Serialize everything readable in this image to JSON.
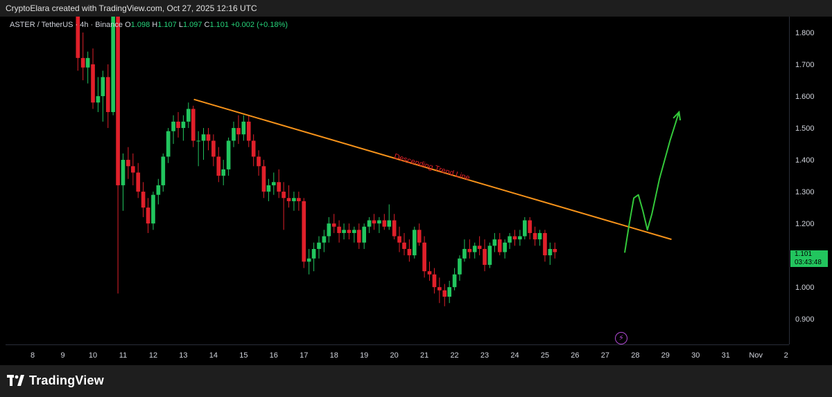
{
  "header": {
    "credit": "CryptoElara created with TradingView.com, Oct 27, 2025 12:16 UTC"
  },
  "legend": {
    "symbol": "ASTER / TetherUS · 4h · Binance",
    "open_label": "O",
    "open": "1.098",
    "high_label": "H",
    "high": "1.107",
    "low_label": "L",
    "low": "1.097",
    "close_label": "C",
    "close": "1.101",
    "change": "+0.002 (+0.18%)"
  },
  "last_price": {
    "price": "1.101",
    "countdown": "03:43:48"
  },
  "footer": {
    "brand": "TradingView"
  },
  "colors": {
    "up": "#22c55e",
    "down": "#e0202a",
    "trend": "#f7931a",
    "annotation": "#e0202a",
    "projection": "#34c93b"
  },
  "icons": {
    "alert": "lightning-bolt-icon",
    "logo": "tradingview-logo-icon"
  },
  "chart_data": {
    "type": "candlestick",
    "title": "",
    "price_ticks": [
      "1.800",
      "1.700",
      "1.600",
      "1.500",
      "1.400",
      "1.300",
      "1.200",
      "1.100",
      "1.000",
      "0.900"
    ],
    "ylim": [
      0.82,
      1.85
    ],
    "time_ticks": [
      {
        "label": "8",
        "d": 8
      },
      {
        "label": "9",
        "d": 9
      },
      {
        "label": "10",
        "d": 10
      },
      {
        "label": "11",
        "d": 11
      },
      {
        "label": "12",
        "d": 12
      },
      {
        "label": "13",
        "d": 13
      },
      {
        "label": "14",
        "d": 14
      },
      {
        "label": "15",
        "d": 15
      },
      {
        "label": "16",
        "d": 16
      },
      {
        "label": "17",
        "d": 17
      },
      {
        "label": "18",
        "d": 18
      },
      {
        "label": "19",
        "d": 19
      },
      {
        "label": "20",
        "d": 20
      },
      {
        "label": "21",
        "d": 21
      },
      {
        "label": "22",
        "d": 22
      },
      {
        "label": "23",
        "d": 23
      },
      {
        "label": "24",
        "d": 24
      },
      {
        "label": "25",
        "d": 25
      },
      {
        "label": "26",
        "d": 26
      },
      {
        "label": "27",
        "d": 27
      },
      {
        "label": "28",
        "d": 28
      },
      {
        "label": "29",
        "d": 29
      },
      {
        "label": "30",
        "d": 30
      },
      {
        "label": "31",
        "d": 31
      },
      {
        "label": "Nov",
        "d": 32
      },
      {
        "label": "2",
        "d": 33
      }
    ],
    "xlim_days": [
      7.1,
      33.1
    ],
    "candles": [
      {
        "d": 9.5,
        "o": 1.95,
        "h": 2.0,
        "l": 1.68,
        "c": 1.72
      },
      {
        "d": 9.67,
        "o": 1.72,
        "h": 1.8,
        "l": 1.65,
        "c": 1.69
      },
      {
        "d": 9.83,
        "o": 1.69,
        "h": 1.74,
        "l": 1.64,
        "c": 1.72
      },
      {
        "d": 10.0,
        "o": 1.7,
        "h": 1.75,
        "l": 1.56,
        "c": 1.58
      },
      {
        "d": 10.17,
        "o": 1.58,
        "h": 1.66,
        "l": 1.55,
        "c": 1.6
      },
      {
        "d": 10.33,
        "o": 1.6,
        "h": 1.68,
        "l": 1.52,
        "c": 1.66
      },
      {
        "d": 10.5,
        "o": 1.66,
        "h": 1.7,
        "l": 1.5,
        "c": 1.55
      },
      {
        "d": 10.67,
        "o": 1.55,
        "h": 1.95,
        "l": 1.54,
        "c": 1.9
      },
      {
        "d": 10.83,
        "o": 1.9,
        "h": 1.95,
        "l": 0.98,
        "c": 1.32
      },
      {
        "d": 11.0,
        "o": 1.32,
        "h": 1.42,
        "l": 1.24,
        "c": 1.4
      },
      {
        "d": 11.17,
        "o": 1.4,
        "h": 1.44,
        "l": 1.34,
        "c": 1.38
      },
      {
        "d": 11.33,
        "o": 1.38,
        "h": 1.42,
        "l": 1.32,
        "c": 1.36
      },
      {
        "d": 11.5,
        "o": 1.36,
        "h": 1.39,
        "l": 1.28,
        "c": 1.3
      },
      {
        "d": 11.67,
        "o": 1.3,
        "h": 1.33,
        "l": 1.22,
        "c": 1.25
      },
      {
        "d": 11.83,
        "o": 1.25,
        "h": 1.28,
        "l": 1.17,
        "c": 1.2
      },
      {
        "d": 12.0,
        "o": 1.2,
        "h": 1.3,
        "l": 1.18,
        "c": 1.29
      },
      {
        "d": 12.17,
        "o": 1.29,
        "h": 1.34,
        "l": 1.26,
        "c": 1.32
      },
      {
        "d": 12.33,
        "o": 1.32,
        "h": 1.42,
        "l": 1.3,
        "c": 1.41
      },
      {
        "d": 12.5,
        "o": 1.41,
        "h": 1.5,
        "l": 1.39,
        "c": 1.49
      },
      {
        "d": 12.67,
        "o": 1.49,
        "h": 1.54,
        "l": 1.45,
        "c": 1.52
      },
      {
        "d": 12.83,
        "o": 1.52,
        "h": 1.55,
        "l": 1.47,
        "c": 1.5
      },
      {
        "d": 13.0,
        "o": 1.5,
        "h": 1.54,
        "l": 1.46,
        "c": 1.52
      },
      {
        "d": 13.17,
        "o": 1.52,
        "h": 1.58,
        "l": 1.5,
        "c": 1.56
      },
      {
        "d": 13.33,
        "o": 1.56,
        "h": 1.57,
        "l": 1.44,
        "c": 1.46
      },
      {
        "d": 13.5,
        "o": 1.46,
        "h": 1.49,
        "l": 1.38,
        "c": 1.46
      },
      {
        "d": 13.67,
        "o": 1.46,
        "h": 1.5,
        "l": 1.4,
        "c": 1.48
      },
      {
        "d": 13.83,
        "o": 1.48,
        "h": 1.5,
        "l": 1.43,
        "c": 1.46
      },
      {
        "d": 14.0,
        "o": 1.46,
        "h": 1.48,
        "l": 1.38,
        "c": 1.41
      },
      {
        "d": 14.17,
        "o": 1.41,
        "h": 1.44,
        "l": 1.33,
        "c": 1.35
      },
      {
        "d": 14.33,
        "o": 1.35,
        "h": 1.4,
        "l": 1.32,
        "c": 1.37
      },
      {
        "d": 14.5,
        "o": 1.37,
        "h": 1.47,
        "l": 1.35,
        "c": 1.46
      },
      {
        "d": 14.67,
        "o": 1.46,
        "h": 1.52,
        "l": 1.44,
        "c": 1.5
      },
      {
        "d": 14.83,
        "o": 1.5,
        "h": 1.54,
        "l": 1.45,
        "c": 1.48
      },
      {
        "d": 15.0,
        "o": 1.48,
        "h": 1.54,
        "l": 1.46,
        "c": 1.52
      },
      {
        "d": 15.17,
        "o": 1.52,
        "h": 1.54,
        "l": 1.44,
        "c": 1.46
      },
      {
        "d": 15.33,
        "o": 1.46,
        "h": 1.48,
        "l": 1.38,
        "c": 1.41
      },
      {
        "d": 15.5,
        "o": 1.41,
        "h": 1.43,
        "l": 1.35,
        "c": 1.38
      },
      {
        "d": 15.67,
        "o": 1.38,
        "h": 1.4,
        "l": 1.28,
        "c": 1.3
      },
      {
        "d": 15.83,
        "o": 1.3,
        "h": 1.34,
        "l": 1.27,
        "c": 1.32
      },
      {
        "d": 16.0,
        "o": 1.32,
        "h": 1.36,
        "l": 1.29,
        "c": 1.33
      },
      {
        "d": 16.17,
        "o": 1.33,
        "h": 1.37,
        "l": 1.28,
        "c": 1.3
      },
      {
        "d": 16.33,
        "o": 1.3,
        "h": 1.33,
        "l": 1.18,
        "c": 1.28
      },
      {
        "d": 16.5,
        "o": 1.28,
        "h": 1.32,
        "l": 1.25,
        "c": 1.27
      },
      {
        "d": 16.67,
        "o": 1.27,
        "h": 1.3,
        "l": 1.24,
        "c": 1.28
      },
      {
        "d": 16.83,
        "o": 1.28,
        "h": 1.3,
        "l": 1.24,
        "c": 1.27
      },
      {
        "d": 17.0,
        "o": 1.27,
        "h": 1.28,
        "l": 1.06,
        "c": 1.08
      },
      {
        "d": 17.17,
        "o": 1.08,
        "h": 1.12,
        "l": 1.04,
        "c": 1.09
      },
      {
        "d": 17.33,
        "o": 1.09,
        "h": 1.14,
        "l": 1.05,
        "c": 1.12
      },
      {
        "d": 17.5,
        "o": 1.12,
        "h": 1.16,
        "l": 1.09,
        "c": 1.14
      },
      {
        "d": 17.67,
        "o": 1.14,
        "h": 1.18,
        "l": 1.11,
        "c": 1.16
      },
      {
        "d": 17.83,
        "o": 1.16,
        "h": 1.22,
        "l": 1.14,
        "c": 1.2
      },
      {
        "d": 18.0,
        "o": 1.2,
        "h": 1.23,
        "l": 1.17,
        "c": 1.19
      },
      {
        "d": 18.17,
        "o": 1.19,
        "h": 1.21,
        "l": 1.14,
        "c": 1.17
      },
      {
        "d": 18.33,
        "o": 1.17,
        "h": 1.2,
        "l": 1.15,
        "c": 1.18
      },
      {
        "d": 18.5,
        "o": 1.18,
        "h": 1.2,
        "l": 1.15,
        "c": 1.17
      },
      {
        "d": 18.67,
        "o": 1.17,
        "h": 1.19,
        "l": 1.14,
        "c": 1.18
      },
      {
        "d": 18.83,
        "o": 1.18,
        "h": 1.2,
        "l": 1.12,
        "c": 1.14
      },
      {
        "d": 19.0,
        "o": 1.14,
        "h": 1.2,
        "l": 1.12,
        "c": 1.19
      },
      {
        "d": 19.17,
        "o": 1.19,
        "h": 1.22,
        "l": 1.17,
        "c": 1.21
      },
      {
        "d": 19.33,
        "o": 1.21,
        "h": 1.23,
        "l": 1.18,
        "c": 1.2
      },
      {
        "d": 19.5,
        "o": 1.2,
        "h": 1.22,
        "l": 1.17,
        "c": 1.21
      },
      {
        "d": 19.67,
        "o": 1.21,
        "h": 1.23,
        "l": 1.18,
        "c": 1.19
      },
      {
        "d": 19.83,
        "o": 1.19,
        "h": 1.26,
        "l": 1.18,
        "c": 1.21
      },
      {
        "d": 20.0,
        "o": 1.21,
        "h": 1.23,
        "l": 1.15,
        "c": 1.16
      },
      {
        "d": 20.17,
        "o": 1.16,
        "h": 1.19,
        "l": 1.11,
        "c": 1.14
      },
      {
        "d": 20.33,
        "o": 1.14,
        "h": 1.17,
        "l": 1.1,
        "c": 1.12
      },
      {
        "d": 20.5,
        "o": 1.12,
        "h": 1.15,
        "l": 1.08,
        "c": 1.1
      },
      {
        "d": 20.67,
        "o": 1.1,
        "h": 1.19,
        "l": 1.09,
        "c": 1.18
      },
      {
        "d": 20.83,
        "o": 1.18,
        "h": 1.2,
        "l": 1.13,
        "c": 1.14
      },
      {
        "d": 21.0,
        "o": 1.14,
        "h": 1.16,
        "l": 1.03,
        "c": 1.05
      },
      {
        "d": 21.17,
        "o": 1.05,
        "h": 1.08,
        "l": 1.02,
        "c": 1.04
      },
      {
        "d": 21.33,
        "o": 1.04,
        "h": 1.06,
        "l": 0.98,
        "c": 1.0
      },
      {
        "d": 21.5,
        "o": 1.0,
        "h": 1.03,
        "l": 0.95,
        "c": 0.99
      },
      {
        "d": 21.67,
        "o": 0.99,
        "h": 1.01,
        "l": 0.94,
        "c": 0.97
      },
      {
        "d": 21.83,
        "o": 0.97,
        "h": 1.02,
        "l": 0.95,
        "c": 1.0
      },
      {
        "d": 22.0,
        "o": 1.0,
        "h": 1.06,
        "l": 0.99,
        "c": 1.04
      },
      {
        "d": 22.17,
        "o": 1.04,
        "h": 1.1,
        "l": 1.02,
        "c": 1.09
      },
      {
        "d": 22.33,
        "o": 1.09,
        "h": 1.15,
        "l": 1.08,
        "c": 1.12
      },
      {
        "d": 22.5,
        "o": 1.12,
        "h": 1.15,
        "l": 1.09,
        "c": 1.11
      },
      {
        "d": 22.67,
        "o": 1.11,
        "h": 1.14,
        "l": 1.09,
        "c": 1.13
      },
      {
        "d": 22.83,
        "o": 1.13,
        "h": 1.16,
        "l": 1.1,
        "c": 1.12
      },
      {
        "d": 23.0,
        "o": 1.12,
        "h": 1.15,
        "l": 1.05,
        "c": 1.07
      },
      {
        "d": 23.17,
        "o": 1.07,
        "h": 1.14,
        "l": 1.06,
        "c": 1.13
      },
      {
        "d": 23.33,
        "o": 1.13,
        "h": 1.17,
        "l": 1.11,
        "c": 1.15
      },
      {
        "d": 23.5,
        "o": 1.15,
        "h": 1.17,
        "l": 1.1,
        "c": 1.11
      },
      {
        "d": 23.67,
        "o": 1.11,
        "h": 1.15,
        "l": 1.09,
        "c": 1.14
      },
      {
        "d": 23.83,
        "o": 1.14,
        "h": 1.17,
        "l": 1.12,
        "c": 1.16
      },
      {
        "d": 24.0,
        "o": 1.16,
        "h": 1.18,
        "l": 1.13,
        "c": 1.15
      },
      {
        "d": 24.17,
        "o": 1.15,
        "h": 1.18,
        "l": 1.13,
        "c": 1.16
      },
      {
        "d": 24.33,
        "o": 1.16,
        "h": 1.22,
        "l": 1.15,
        "c": 1.21
      },
      {
        "d": 24.5,
        "o": 1.21,
        "h": 1.22,
        "l": 1.15,
        "c": 1.17
      },
      {
        "d": 24.67,
        "o": 1.17,
        "h": 1.19,
        "l": 1.13,
        "c": 1.15
      },
      {
        "d": 24.83,
        "o": 1.15,
        "h": 1.18,
        "l": 1.13,
        "c": 1.17
      },
      {
        "d": 25.0,
        "o": 1.17,
        "h": 1.18,
        "l": 1.08,
        "c": 1.1
      },
      {
        "d": 25.17,
        "o": 1.1,
        "h": 1.14,
        "l": 1.07,
        "c": 1.12
      },
      {
        "d": 25.33,
        "o": 1.12,
        "h": 1.14,
        "l": 1.09,
        "c": 1.11
      }
    ],
    "trend_line": {
      "label": "Descending Trend Line",
      "p1": {
        "d": 13.35,
        "v": 1.59
      },
      "p2": {
        "d": 29.2,
        "v": 1.15
      }
    },
    "projection_path": [
      {
        "d": 27.65,
        "v": 1.11
      },
      {
        "d": 27.8,
        "v": 1.2
      },
      {
        "d": 27.95,
        "v": 1.28
      },
      {
        "d": 28.1,
        "v": 1.29
      },
      {
        "d": 28.25,
        "v": 1.24
      },
      {
        "d": 28.4,
        "v": 1.18
      },
      {
        "d": 28.55,
        "v": 1.23
      },
      {
        "d": 28.8,
        "v": 1.34
      },
      {
        "d": 29.15,
        "v": 1.46
      },
      {
        "d": 29.45,
        "v": 1.55
      }
    ]
  }
}
